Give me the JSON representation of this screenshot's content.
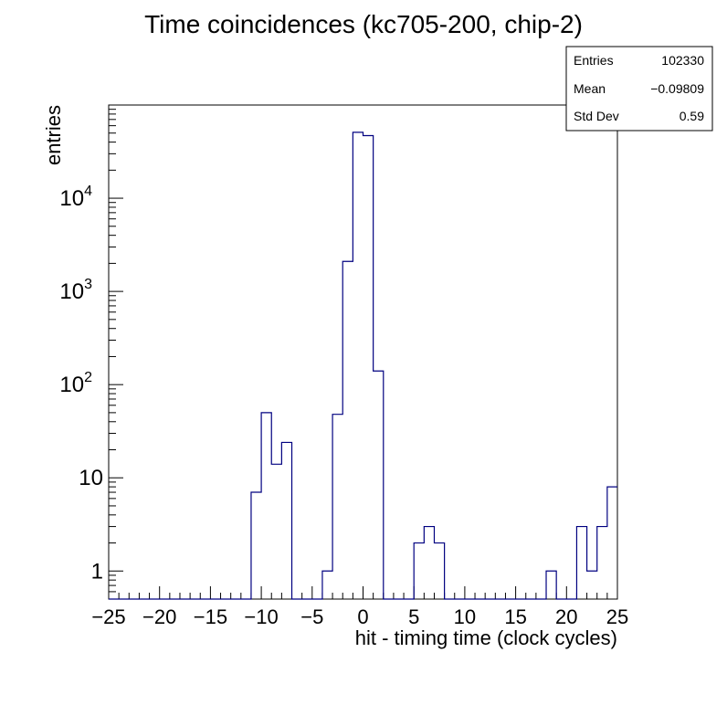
{
  "chart_data": {
    "type": "histogram",
    "title": "Time coincidences (kc705-200, chip-2)",
    "xlabel": "hit - timing time (clock cycles)",
    "ylabel": "entries",
    "xlim": [
      -25,
      25
    ],
    "ylim": [
      0.5,
      100000
    ],
    "log_y": true,
    "line_color": "#000080",
    "bin_width": 1,
    "x_ticks": [
      -25,
      -20,
      -15,
      -10,
      -5,
      0,
      5,
      10,
      15,
      20,
      25
    ],
    "x_tick_labels": [
      "−25",
      "−20",
      "−15",
      "−10",
      "−5",
      "0",
      "5",
      "10",
      "15",
      "20",
      "25"
    ],
    "y_ticks": [
      {
        "value": 1,
        "base": "1",
        "exp": ""
      },
      {
        "value": 10,
        "base": "10",
        "exp": ""
      },
      {
        "value": 100,
        "base": "10",
        "exp": "2"
      },
      {
        "value": 1000,
        "base": "10",
        "exp": "3"
      },
      {
        "value": 10000,
        "base": "10",
        "exp": "4"
      }
    ],
    "bins": [
      {
        "x": -11,
        "count": 7
      },
      {
        "x": -10,
        "count": 50
      },
      {
        "x": -9,
        "count": 14
      },
      {
        "x": -8,
        "count": 24
      },
      {
        "x": -4,
        "count": 1
      },
      {
        "x": -3,
        "count": 48
      },
      {
        "x": -2,
        "count": 2100
      },
      {
        "x": -1,
        "count": 51000
      },
      {
        "x": 0,
        "count": 47000
      },
      {
        "x": 1,
        "count": 140
      },
      {
        "x": 5,
        "count": 2
      },
      {
        "x": 6,
        "count": 3
      },
      {
        "x": 7,
        "count": 2
      },
      {
        "x": 18,
        "count": 1
      },
      {
        "x": 21,
        "count": 3
      },
      {
        "x": 22,
        "count": 1
      },
      {
        "x": 23,
        "count": 3
      },
      {
        "x": 24,
        "count": 8
      }
    ],
    "stats": {
      "entries_label": "Entries",
      "entries_value": "102330",
      "mean_label": "Mean",
      "mean_value": "−0.09809",
      "stddev_label": "Std Dev",
      "stddev_value": "0.59"
    }
  }
}
